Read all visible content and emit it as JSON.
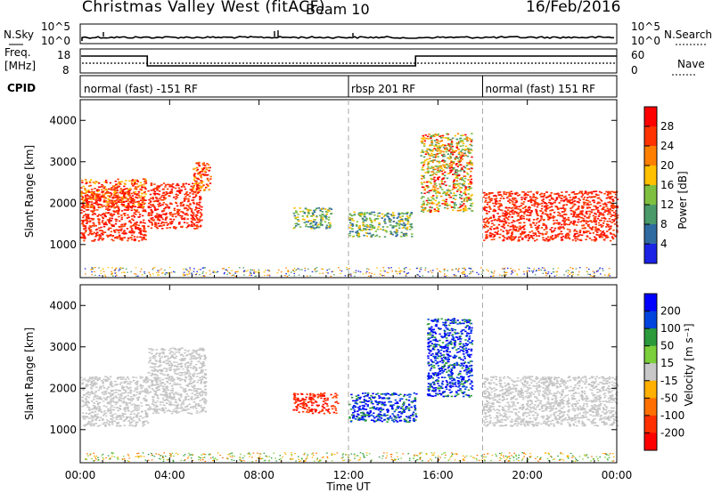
{
  "header": {
    "title": "Christmas Valley West (fitACF)",
    "beam": "Beam 10",
    "date": "16/Feb/2016"
  },
  "top_panels": {
    "nsky_label": "N.Sky",
    "nsky_ticks": [
      "10^5",
      "10^0"
    ],
    "nsearch_label": "N.Search",
    "nsearch_ticks": [
      "10^5",
      "10^0"
    ],
    "freq_label_1": "Freq.",
    "freq_label_2": "[MHz]",
    "freq_ticks": [
      "18",
      "8"
    ],
    "nave_label": "Nave",
    "nave_ticks": [
      "60",
      "0"
    ],
    "cpid_label": "CPID",
    "cpid_segments": [
      {
        "label": "normal (fast) -151 RF",
        "start_hour": 0,
        "end_hour": 12
      },
      {
        "label": "rbsp 201 RF",
        "start_hour": 12,
        "end_hour": 18
      },
      {
        "label": "normal (fast) 151 RF",
        "start_hour": 18,
        "end_hour": 24
      }
    ],
    "freq_series": [
      {
        "start_hour": 0,
        "end_hour": 3,
        "value": "high"
      },
      {
        "start_hour": 3,
        "end_hour": 15,
        "value": "low"
      },
      {
        "start_hour": 15,
        "end_hour": 24,
        "value": "high"
      }
    ]
  },
  "chart_data": [
    {
      "type": "heatmap",
      "title": "Power",
      "xlabel": "",
      "ylabel": "Slant Range [km]",
      "xlim_hours": [
        0,
        24
      ],
      "ylim_km": [
        200,
        4500
      ],
      "yticks": [
        1000,
        2000,
        3000,
        4000
      ],
      "colorbar_label": "Power [dB]",
      "colorbar_ticks": [
        "28",
        "24",
        "20",
        "16",
        "12",
        "8",
        "4"
      ],
      "colors": [
        "#ff0000",
        "#ff3300",
        "#ff8000",
        "#ffc000",
        "#80c040",
        "#4a9a6a",
        "#2f6aa0",
        "#1a22e6"
      ],
      "regions": [
        {
          "t0": 0.0,
          "t1": 2.9,
          "r0": 1100,
          "r1": 2300,
          "level": 1,
          "tone": "red"
        },
        {
          "t0": 0.0,
          "t1": 2.9,
          "r0": 1900,
          "r1": 2600,
          "level": 2,
          "tone": "orange"
        },
        {
          "t0": 3.0,
          "t1": 5.4,
          "r0": 1400,
          "r1": 2500,
          "level": 1,
          "tone": "red"
        },
        {
          "t0": 5.0,
          "t1": 5.8,
          "r0": 2300,
          "r1": 3000,
          "level": 2,
          "tone": "orange"
        },
        {
          "t0": 9.5,
          "t1": 11.2,
          "r0": 1400,
          "r1": 1900,
          "level": 4,
          "tone": "green"
        },
        {
          "t0": 12.0,
          "t1": 14.8,
          "r0": 1200,
          "r1": 1800,
          "level": 4,
          "tone": "green"
        },
        {
          "t0": 15.2,
          "t1": 17.5,
          "r0": 1800,
          "r1": 3700,
          "level": 3,
          "tone": "mixed"
        },
        {
          "t0": 18.0,
          "t1": 24.0,
          "r0": 1100,
          "r1": 2300,
          "level": 1,
          "tone": "red"
        }
      ]
    },
    {
      "type": "heatmap",
      "title": "Velocity",
      "xlabel": "Time UT",
      "ylabel": "Slant Range [km]",
      "xlim_hours": [
        0,
        24
      ],
      "ylim_km": [
        200,
        4500
      ],
      "xticks": [
        "00:00",
        "04:00",
        "08:00",
        "12:00",
        "16:00",
        "20:00",
        "00:00"
      ],
      "yticks": [
        1000,
        2000,
        3000,
        4000
      ],
      "colorbar_label": "Velocity [m s⁻¹]",
      "colorbar_ticks": [
        "200",
        "100",
        "50",
        "15",
        "-15",
        "-50",
        "-100",
        "-200"
      ],
      "colors": [
        "#0000ff",
        "#0044dd",
        "#2a9a3a",
        "#7bcf3a",
        "#c8c8c8",
        "#ffb000",
        "#ff7000",
        "#ff3000",
        "#ff0000"
      ],
      "regions": [
        {
          "t0": 0.0,
          "t1": 3.0,
          "r0": 1100,
          "r1": 2300,
          "tone": "gray"
        },
        {
          "t0": 3.0,
          "t1": 5.6,
          "r0": 1400,
          "r1": 3000,
          "tone": "gray"
        },
        {
          "t0": 9.5,
          "t1": 11.5,
          "r0": 1400,
          "r1": 1900,
          "tone": "red"
        },
        {
          "t0": 12.0,
          "t1": 15.0,
          "r0": 1200,
          "r1": 1900,
          "tone": "blue"
        },
        {
          "t0": 15.5,
          "t1": 17.5,
          "r0": 1800,
          "r1": 3700,
          "tone": "blue"
        },
        {
          "t0": 18.0,
          "t1": 24.0,
          "r0": 1100,
          "r1": 2300,
          "tone": "gray"
        }
      ]
    }
  ]
}
